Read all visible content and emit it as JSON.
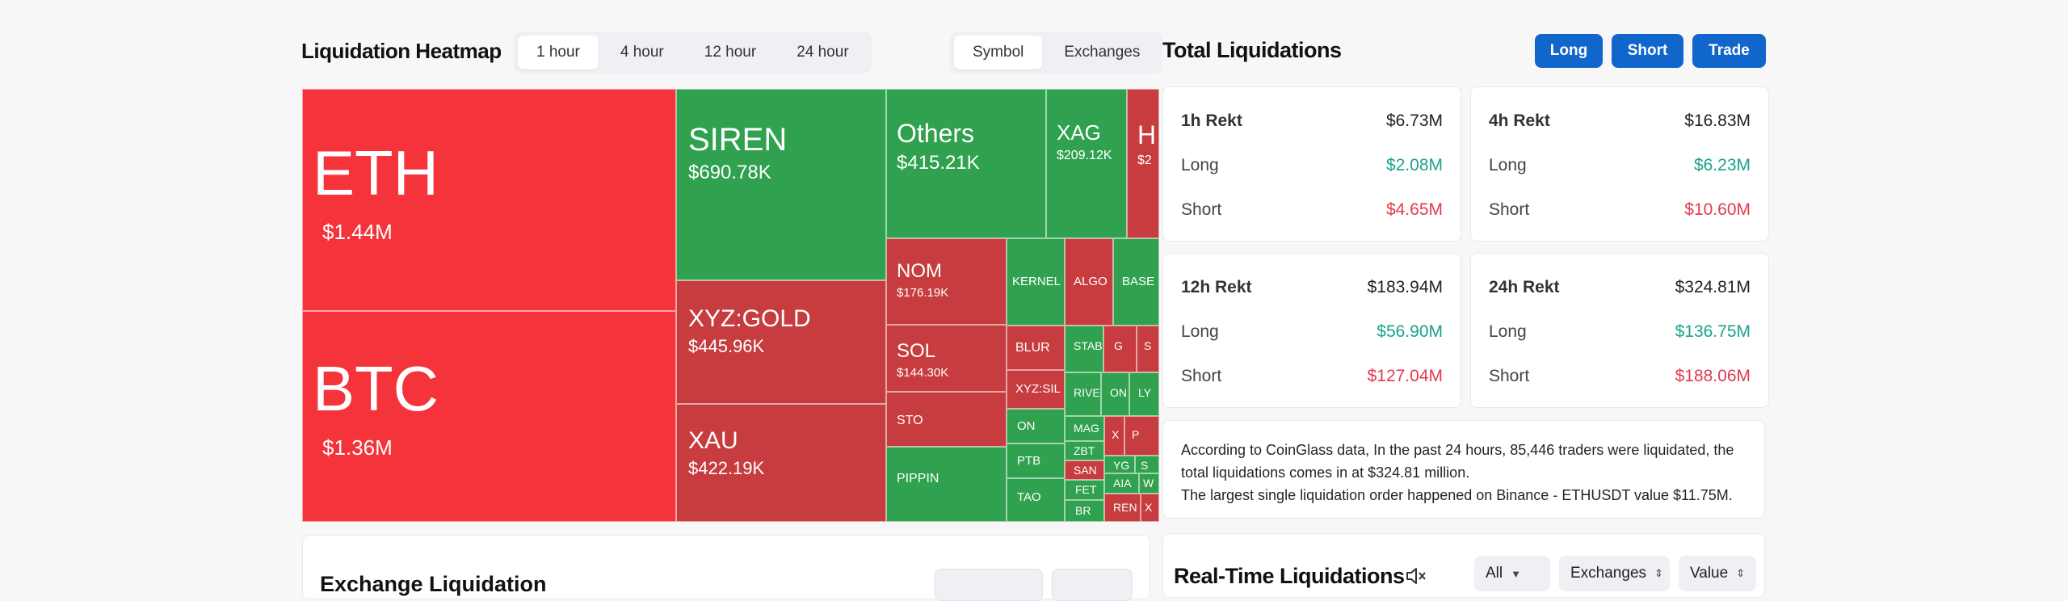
{
  "heatmap": {
    "title": "Liquidation Heatmap",
    "time_options": [
      "1 hour",
      "4 hour",
      "12 hour",
      "24 hour"
    ],
    "time_selected": "1 hour",
    "view_options": [
      "Symbol",
      "Exchanges"
    ],
    "view_selected": "Symbol",
    "tiles": [
      {
        "symbol": "ETH",
        "value": "$1.44M",
        "color": "red"
      },
      {
        "symbol": "BTC",
        "value": "$1.36M",
        "color": "red"
      },
      {
        "symbol": "SIREN",
        "value": "$690.78K",
        "color": "green"
      },
      {
        "symbol": "XYZ:GOLD",
        "value": "$445.96K",
        "color": "dred"
      },
      {
        "symbol": "XAU",
        "value": "$422.19K",
        "color": "dred"
      },
      {
        "symbol": "Others",
        "value": "$415.21K",
        "color": "green"
      },
      {
        "symbol": "XAG",
        "value": "$209.12K",
        "color": "green"
      },
      {
        "symbol": "H",
        "value": "$2",
        "color": "dred"
      },
      {
        "symbol": "NOM",
        "value": "$176.19K",
        "color": "dred"
      },
      {
        "symbol": "SOL",
        "value": "$144.30K",
        "color": "dred"
      },
      {
        "symbol": "STO",
        "value": "",
        "color": "dred"
      },
      {
        "symbol": "PIPPIN",
        "value": "",
        "color": "green"
      },
      {
        "symbol": "KERNEL",
        "value": "",
        "color": "green"
      },
      {
        "symbol": "ALGO",
        "value": "",
        "color": "dred"
      },
      {
        "symbol": "BASE",
        "value": "",
        "color": "green"
      },
      {
        "symbol": "BLUR",
        "value": "",
        "color": "dred"
      },
      {
        "symbol": "XYZ:SIL",
        "value": "",
        "color": "dred"
      },
      {
        "symbol": "ON",
        "value": "",
        "color": "green"
      },
      {
        "symbol": "PTB",
        "value": "",
        "color": "green"
      },
      {
        "symbol": "TAO",
        "value": "",
        "color": "green"
      },
      {
        "symbol": "STAB",
        "value": "",
        "color": "green"
      },
      {
        "symbol": "G",
        "value": "",
        "color": "dred"
      },
      {
        "symbol": "S",
        "value": "",
        "color": "dred"
      },
      {
        "symbol": "RIVE",
        "value": "",
        "color": "green"
      },
      {
        "symbol": "ON",
        "value": "",
        "color": "green"
      },
      {
        "symbol": "LY",
        "value": "",
        "color": "green"
      },
      {
        "symbol": "MAG",
        "value": "",
        "color": "green"
      },
      {
        "symbol": "X",
        "value": "",
        "color": "dred"
      },
      {
        "symbol": "P",
        "value": "",
        "color": "dred"
      },
      {
        "symbol": "ZBT",
        "value": "",
        "color": "green"
      },
      {
        "symbol": "YG",
        "value": "",
        "color": "green"
      },
      {
        "symbol": "S",
        "value": "",
        "color": "green"
      },
      {
        "symbol": "SAN",
        "value": "",
        "color": "dred"
      },
      {
        "symbol": "FET",
        "value": "",
        "color": "green"
      },
      {
        "symbol": "AIA",
        "value": "",
        "color": "green"
      },
      {
        "symbol": "W",
        "value": "",
        "color": "green"
      },
      {
        "symbol": "BR",
        "value": "",
        "color": "green"
      },
      {
        "symbol": "REN",
        "value": "",
        "color": "dred"
      },
      {
        "symbol": "X",
        "value": "",
        "color": "dred"
      }
    ]
  },
  "total": {
    "title": "Total Liquidations",
    "buttons": [
      "Long",
      "Short",
      "Trade"
    ],
    "cards": [
      {
        "head": "1h Rekt",
        "total": "$6.73M",
        "long_label": "Long",
        "long": "$2.08M",
        "short_label": "Short",
        "short": "$4.65M"
      },
      {
        "head": "4h Rekt",
        "total": "$16.83M",
        "long_label": "Long",
        "long": "$6.23M",
        "short_label": "Short",
        "short": "$10.60M"
      },
      {
        "head": "12h Rekt",
        "total": "$183.94M",
        "long_label": "Long",
        "long": "$56.90M",
        "short_label": "Short",
        "short": "$127.04M"
      },
      {
        "head": "24h Rekt",
        "total": "$324.81M",
        "long_label": "Long",
        "long": "$136.75M",
        "short_label": "Short",
        "short": "$188.06M"
      }
    ],
    "info_line1": "According to CoinGlass data, In the past 24 hours, 85,446 traders were liquidated, the total liquidations comes in at $324.81 million.",
    "info_line2": "The largest single liquidation order happened on Binance - ETHUSDT value $11.75M."
  },
  "realtime": {
    "title": "Real-Time Liquidations",
    "filter_all": "All",
    "filter_exchanges": "Exchanges",
    "filter_value": "Value"
  },
  "exchange": {
    "title": "Exchange Liquidation"
  },
  "colors": {
    "red": "#f5333a",
    "dred": "#c63c3f",
    "green": "#30a14e",
    "brand_blue": "#1166cc",
    "positive": "#1aa38a",
    "negative": "#e23a4f"
  }
}
